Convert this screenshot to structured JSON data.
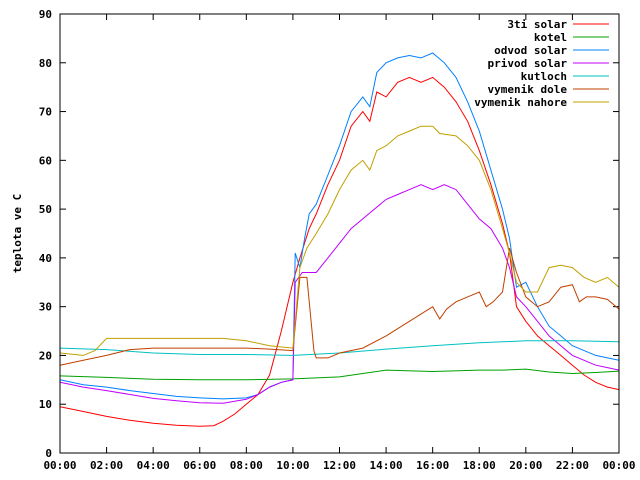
{
  "chart_data": {
    "type": "line",
    "title": "",
    "xlabel": "",
    "ylabel": "teplota ve C",
    "xlim": [
      0,
      24
    ],
    "ylim": [
      0,
      90
    ],
    "yticks": [
      0,
      10,
      20,
      30,
      40,
      50,
      60,
      70,
      80,
      90
    ],
    "xtick_labels": [
      "00:00",
      "02:00",
      "04:00",
      "06:00",
      "08:00",
      "10:00",
      "12:00",
      "14:00",
      "16:00",
      "18:00",
      "20:00",
      "22:00",
      "00:00"
    ],
    "grid": false,
    "legend_position": "top-right",
    "series": [
      {
        "name": "3ti solar",
        "color": "#ff0000",
        "points": [
          [
            0,
            9.5
          ],
          [
            1,
            8.5
          ],
          [
            2,
            7.5
          ],
          [
            3,
            6.7
          ],
          [
            4,
            6.1
          ],
          [
            5,
            5.7
          ],
          [
            6,
            5.5
          ],
          [
            6.6,
            5.6
          ],
          [
            7,
            6.5
          ],
          [
            7.5,
            8
          ],
          [
            8,
            10
          ],
          [
            8.5,
            12
          ],
          [
            9,
            16
          ],
          [
            9.5,
            25
          ],
          [
            10,
            35
          ],
          [
            10.3,
            40
          ],
          [
            10.7,
            46
          ],
          [
            11,
            49
          ],
          [
            11.5,
            55
          ],
          [
            12,
            60
          ],
          [
            12.5,
            67
          ],
          [
            13,
            70
          ],
          [
            13.3,
            68
          ],
          [
            13.6,
            74
          ],
          [
            14,
            73
          ],
          [
            14.5,
            76
          ],
          [
            15,
            77
          ],
          [
            15.5,
            76
          ],
          [
            16,
            77
          ],
          [
            16.5,
            75
          ],
          [
            17,
            72
          ],
          [
            17.5,
            68
          ],
          [
            18,
            62
          ],
          [
            18.5,
            55
          ],
          [
            19,
            47
          ],
          [
            19.3,
            41
          ],
          [
            19.6,
            30
          ],
          [
            20,
            27
          ],
          [
            20.5,
            24
          ],
          [
            21,
            22
          ],
          [
            21.5,
            20
          ],
          [
            22,
            18
          ],
          [
            22.5,
            16
          ],
          [
            23,
            14.5
          ],
          [
            23.5,
            13.5
          ],
          [
            24,
            13
          ]
        ]
      },
      {
        "name": "kotel",
        "color": "#00a000",
        "points": [
          [
            0,
            15.8
          ],
          [
            2,
            15.5
          ],
          [
            4,
            15.1
          ],
          [
            6,
            15
          ],
          [
            8,
            15
          ],
          [
            10,
            15.2
          ],
          [
            12,
            15.6
          ],
          [
            13,
            16.3
          ],
          [
            14,
            17
          ],
          [
            16,
            16.7
          ],
          [
            18,
            17
          ],
          [
            19,
            17
          ],
          [
            20,
            17.2
          ],
          [
            21,
            16.6
          ],
          [
            22,
            16.3
          ],
          [
            23,
            16.5
          ],
          [
            24,
            16.8
          ]
        ]
      },
      {
        "name": "odvod solar",
        "color": "#0080ff",
        "points": [
          [
            0,
            15
          ],
          [
            1,
            14
          ],
          [
            2,
            13.5
          ],
          [
            3,
            12.8
          ],
          [
            4,
            12.2
          ],
          [
            5,
            11.6
          ],
          [
            6,
            11.3
          ],
          [
            7,
            11.1
          ],
          [
            8,
            11.3
          ],
          [
            8.5,
            12
          ],
          [
            9,
            13.5
          ],
          [
            9.5,
            14.5
          ],
          [
            10,
            15
          ],
          [
            10.1,
            41
          ],
          [
            10.3,
            38
          ],
          [
            10.5,
            44
          ],
          [
            10.7,
            49
          ],
          [
            11,
            51
          ],
          [
            11.5,
            57
          ],
          [
            12,
            63
          ],
          [
            12.5,
            70
          ],
          [
            13,
            73
          ],
          [
            13.3,
            71
          ],
          [
            13.6,
            78
          ],
          [
            14,
            80
          ],
          [
            14.5,
            81
          ],
          [
            15,
            81.5
          ],
          [
            15.5,
            81
          ],
          [
            16,
            82
          ],
          [
            16.5,
            80
          ],
          [
            17,
            77
          ],
          [
            17.5,
            72
          ],
          [
            18,
            66
          ],
          [
            18.5,
            58
          ],
          [
            19,
            50
          ],
          [
            19.3,
            44
          ],
          [
            19.6,
            34
          ],
          [
            20,
            35
          ],
          [
            20.5,
            30
          ],
          [
            21,
            26
          ],
          [
            21.5,
            24
          ],
          [
            22,
            22
          ],
          [
            22.5,
            21
          ],
          [
            23,
            20
          ],
          [
            23.5,
            19.5
          ],
          [
            24,
            19
          ]
        ]
      },
      {
        "name": "privod solar",
        "color": "#c000ff",
        "points": [
          [
            0,
            14.5
          ],
          [
            1,
            13.5
          ],
          [
            2,
            12.8
          ],
          [
            3,
            12
          ],
          [
            4,
            11.2
          ],
          [
            5,
            10.7
          ],
          [
            6,
            10.3
          ],
          [
            7,
            10.2
          ],
          [
            8,
            11
          ],
          [
            8.5,
            12
          ],
          [
            9,
            13.5
          ],
          [
            9.5,
            14.5
          ],
          [
            10,
            15
          ],
          [
            10.1,
            35
          ],
          [
            10.4,
            37
          ],
          [
            11,
            37
          ],
          [
            11.5,
            40
          ],
          [
            12,
            43
          ],
          [
            12.5,
            46
          ],
          [
            13,
            48
          ],
          [
            13.5,
            50
          ],
          [
            14,
            52
          ],
          [
            14.5,
            53
          ],
          [
            15,
            54
          ],
          [
            15.5,
            55
          ],
          [
            16,
            54
          ],
          [
            16.5,
            55
          ],
          [
            17,
            54
          ],
          [
            17.5,
            51
          ],
          [
            18,
            48
          ],
          [
            18.5,
            46
          ],
          [
            19,
            42
          ],
          [
            19.3,
            38
          ],
          [
            19.6,
            32
          ],
          [
            20,
            30
          ],
          [
            20.5,
            27
          ],
          [
            21,
            24
          ],
          [
            21.5,
            22
          ],
          [
            22,
            20
          ],
          [
            22.5,
            19
          ],
          [
            23,
            18
          ],
          [
            23.5,
            17.5
          ],
          [
            24,
            17
          ]
        ]
      },
      {
        "name": "kutloch",
        "color": "#00c0c0",
        "points": [
          [
            0,
            21.5
          ],
          [
            2,
            21.2
          ],
          [
            4,
            20.5
          ],
          [
            6,
            20.2
          ],
          [
            8,
            20.2
          ],
          [
            10,
            20
          ],
          [
            12,
            20.5
          ],
          [
            14,
            21.3
          ],
          [
            16,
            22
          ],
          [
            18,
            22.6
          ],
          [
            20,
            23
          ],
          [
            22,
            23
          ],
          [
            24,
            22.8
          ]
        ]
      },
      {
        "name": "vymenik dole",
        "color": "#c04000",
        "points": [
          [
            0,
            18
          ],
          [
            1,
            19
          ],
          [
            2,
            20
          ],
          [
            3,
            21.2
          ],
          [
            4,
            21.5
          ],
          [
            5,
            21.5
          ],
          [
            6,
            21.5
          ],
          [
            7,
            21.5
          ],
          [
            8,
            21.5
          ],
          [
            9,
            21.3
          ],
          [
            10,
            21
          ],
          [
            10.3,
            36
          ],
          [
            10.6,
            36
          ],
          [
            10.9,
            21
          ],
          [
            11,
            19.5
          ],
          [
            11.5,
            19.5
          ],
          [
            12,
            20.5
          ],
          [
            13,
            21.5
          ],
          [
            14,
            24
          ],
          [
            15,
            27
          ],
          [
            16,
            30
          ],
          [
            16.3,
            27.5
          ],
          [
            16.6,
            29.5
          ],
          [
            17,
            31
          ],
          [
            17.5,
            32
          ],
          [
            18,
            33
          ],
          [
            18.3,
            30
          ],
          [
            18.6,
            31
          ],
          [
            19,
            33
          ],
          [
            19.3,
            42
          ],
          [
            19.6,
            37
          ],
          [
            20,
            32
          ],
          [
            20.5,
            30
          ],
          [
            21,
            31
          ],
          [
            21.5,
            34
          ],
          [
            22,
            34.5
          ],
          [
            22.3,
            31
          ],
          [
            22.6,
            32
          ],
          [
            23,
            32
          ],
          [
            23.5,
            31.5
          ],
          [
            24,
            29.5
          ]
        ]
      },
      {
        "name": "vymenik nahore",
        "color": "#c0a000",
        "points": [
          [
            0,
            20.5
          ],
          [
            1,
            20
          ],
          [
            1.5,
            21
          ],
          [
            2,
            23.5
          ],
          [
            3,
            23.5
          ],
          [
            4,
            23.5
          ],
          [
            5,
            23.5
          ],
          [
            6,
            23.5
          ],
          [
            7,
            23.5
          ],
          [
            8,
            23
          ],
          [
            9,
            22
          ],
          [
            10,
            21.5
          ],
          [
            10.3,
            38
          ],
          [
            10.6,
            42
          ],
          [
            11,
            45
          ],
          [
            11.5,
            49
          ],
          [
            12,
            54
          ],
          [
            12.5,
            58
          ],
          [
            13,
            60
          ],
          [
            13.3,
            58
          ],
          [
            13.6,
            62
          ],
          [
            14,
            63
          ],
          [
            14.5,
            65
          ],
          [
            15,
            66
          ],
          [
            15.5,
            67
          ],
          [
            16,
            67
          ],
          [
            16.3,
            65.5
          ],
          [
            17,
            65
          ],
          [
            17.5,
            63
          ],
          [
            18,
            60
          ],
          [
            18.5,
            54
          ],
          [
            19,
            46
          ],
          [
            19.3,
            41
          ],
          [
            19.6,
            35
          ],
          [
            20,
            33
          ],
          [
            20.5,
            33
          ],
          [
            21,
            38
          ],
          [
            21.5,
            38.5
          ],
          [
            22,
            38
          ],
          [
            22.5,
            36
          ],
          [
            23,
            35
          ],
          [
            23.5,
            36
          ],
          [
            24,
            34
          ]
        ]
      }
    ]
  }
}
